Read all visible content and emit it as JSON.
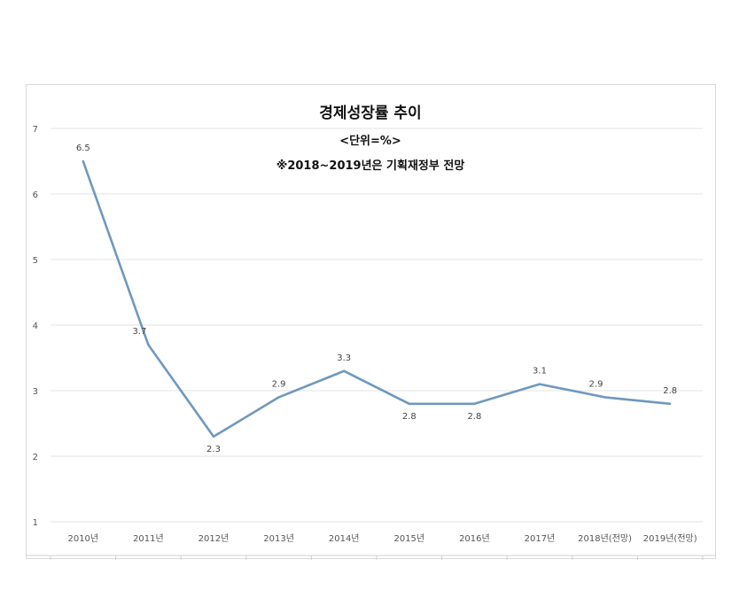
{
  "chart_data": {
    "type": "line",
    "title": "경제성장률 추이",
    "subtitle": "<단위=%>",
    "note": "※2018~2019년은 기획재정부 전망",
    "categories": [
      "2010년",
      "2011년",
      "2012년",
      "2013년",
      "2014년",
      "2015년",
      "2016년",
      "2017년",
      "2018년(전망)",
      "2019년(전망)"
    ],
    "series": [
      {
        "values": [
          6.5,
          3.7,
          2.3,
          2.9,
          3.3,
          2.8,
          2.8,
          3.1,
          2.9,
          2.8
        ],
        "labels": [
          "6.5",
          "3.7",
          "2.3",
          "2.9",
          "3.3",
          "2.8",
          "2.8",
          "3.1",
          "2.9",
          "2.8"
        ]
      }
    ],
    "ylim": [
      1,
      7
    ],
    "yticks": [
      1,
      2,
      3,
      4,
      5,
      6,
      7
    ],
    "grid": true,
    "xlabel": "",
    "ylabel": "",
    "line_color": "#6f98be"
  }
}
